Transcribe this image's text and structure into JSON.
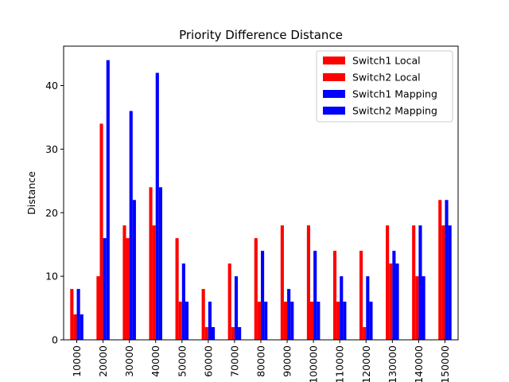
{
  "chart_data": {
    "type": "bar",
    "title": "Priority Difference Distance",
    "xlabel": "",
    "ylabel": "Distance",
    "ylim": [
      0,
      46.2
    ],
    "yticks": [
      0,
      10,
      20,
      30,
      40
    ],
    "categories": [
      "10000",
      "20000",
      "30000",
      "40000",
      "50000",
      "60000",
      "70000",
      "80000",
      "90000",
      "100000",
      "110000",
      "120000",
      "130000",
      "140000",
      "150000"
    ],
    "series": [
      {
        "name": "Switch1 Local",
        "color": "#ff0000",
        "values": [
          8,
          10,
          18,
          24,
          16,
          8,
          12,
          16,
          18,
          18,
          14,
          14,
          18,
          18,
          22
        ]
      },
      {
        "name": "Switch2 Local",
        "color": "#ff0000",
        "values": [
          4,
          34,
          16,
          18,
          6,
          2,
          2,
          6,
          6,
          6,
          6,
          2,
          12,
          10,
          18
        ]
      },
      {
        "name": "Switch1 Mapping",
        "color": "#0000ff",
        "values": [
          8,
          16,
          36,
          42,
          12,
          6,
          10,
          14,
          8,
          14,
          10,
          10,
          14,
          18,
          22
        ]
      },
      {
        "name": "Switch2 Mapping",
        "color": "#0000ff",
        "values": [
          4,
          44,
          22,
          24,
          6,
          2,
          2,
          6,
          6,
          6,
          6,
          6,
          12,
          10,
          18
        ]
      }
    ],
    "legend": "top-right",
    "grid": false
  }
}
